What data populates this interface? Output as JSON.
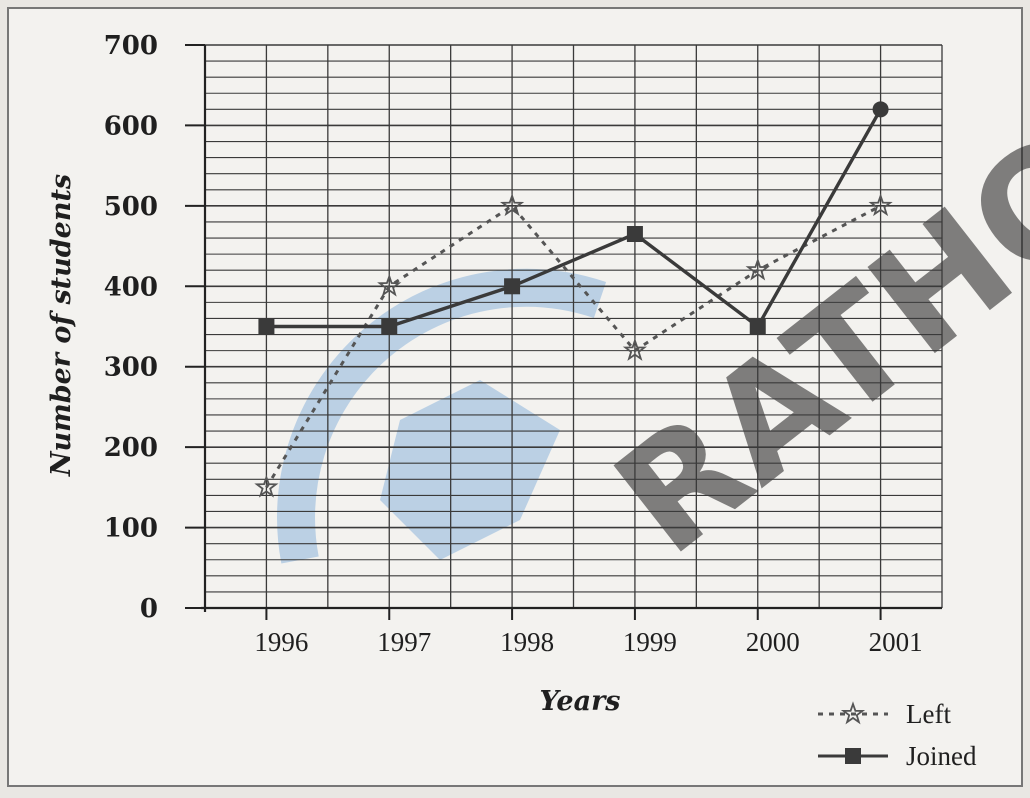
{
  "chart_data": {
    "type": "line",
    "categories": [
      "1996",
      "1997",
      "1998",
      "1999",
      "2000",
      "2001"
    ],
    "series": [
      {
        "name": "Left",
        "values": [
          150,
          400,
          500,
          320,
          420,
          500
        ],
        "color": "#555555",
        "style": "dotted",
        "marker": "star"
      },
      {
        "name": "Joined",
        "values": [
          350,
          350,
          400,
          465,
          350,
          620
        ],
        "color": "#3a3a3a",
        "style": "solid",
        "marker": "square"
      }
    ],
    "xlabel": "Years",
    "ylabel": "Number of students",
    "ylim": [
      0,
      700
    ],
    "yticks": [
      "0",
      "100",
      "200",
      "300",
      "400",
      "500",
      "600",
      "700"
    ],
    "grid": true,
    "legend_position": "bottom-right"
  },
  "watermark": {
    "text": "RATHO",
    "color": "#f6c28a",
    "accent": "#8fb6dc"
  }
}
